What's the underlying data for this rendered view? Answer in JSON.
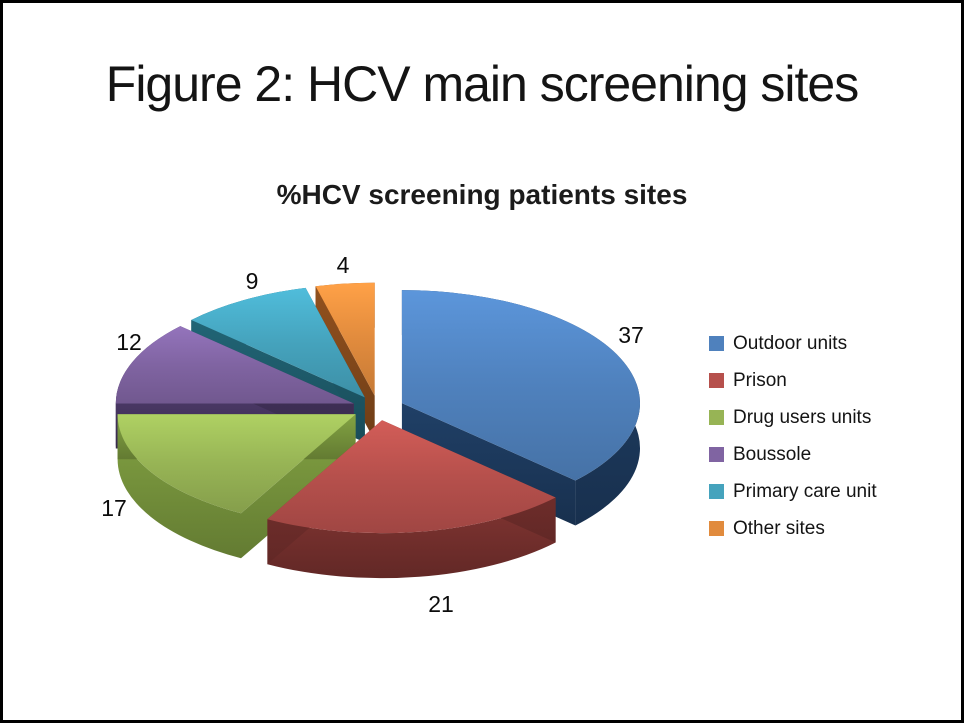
{
  "slide": {
    "title": "Figure 2: HCV main screening sites"
  },
  "chart_data": {
    "type": "pie",
    "style": "3d-exploded",
    "title": "%HCV screening patients sites",
    "unit": "percent",
    "total": 100,
    "start_angle_deg": 0,
    "direction": "clockwise",
    "legend_position": "right",
    "series": [
      {
        "label": "Outdoor units",
        "value": 37,
        "color": "#4F81BD",
        "wall_color": "#1E3C61"
      },
      {
        "label": "Prison",
        "value": 21,
        "color": "#B6504C",
        "wall_color": "#7B322F"
      },
      {
        "label": "Drug users units",
        "value": 17,
        "color": "#97B455",
        "wall_color": "#7C9A3F"
      },
      {
        "label": "Boussole",
        "value": 12,
        "color": "#8064A2",
        "wall_color": "#45345E"
      },
      {
        "label": "Primary care unit",
        "value": 9,
        "color": "#45A3BD",
        "wall_color": "#1F5F6F"
      },
      {
        "label": "Other sites",
        "value": 4,
        "color": "#E18B3D",
        "wall_color": "#8A4C1C"
      }
    ]
  }
}
